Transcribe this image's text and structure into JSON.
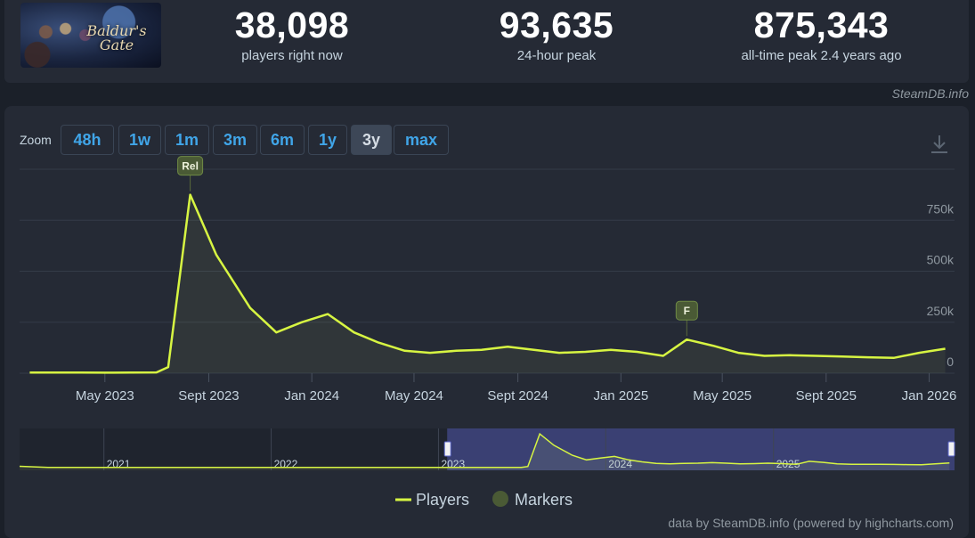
{
  "header": {
    "game_title": "Baldur's Gate",
    "stats": [
      {
        "value": "38,098",
        "label": "players right now"
      },
      {
        "value": "93,635",
        "label": "24-hour peak"
      },
      {
        "value": "875,343",
        "label": "all-time peak 2.4 years ago"
      }
    ],
    "attribution": "SteamDB.info"
  },
  "zoom": {
    "label": "Zoom",
    "options": [
      "48h",
      "1w",
      "1m",
      "3m",
      "6m",
      "1y",
      "3y",
      "max"
    ],
    "selected": "3y"
  },
  "chart_data": {
    "type": "line",
    "series": [
      {
        "name": "Players",
        "color": "#d7f542",
        "points": [
          [
            "2023-02-01",
            3000
          ],
          [
            "2023-03-01",
            3000
          ],
          [
            "2023-04-01",
            3000
          ],
          [
            "2023-05-01",
            2500
          ],
          [
            "2023-06-01",
            3000
          ],
          [
            "2023-07-01",
            4000
          ],
          [
            "2023-07-15",
            30000
          ],
          [
            "2023-08-10",
            875000
          ],
          [
            "2023-09-10",
            580000
          ],
          [
            "2023-10-20",
            320000
          ],
          [
            "2023-11-20",
            200000
          ],
          [
            "2023-12-20",
            250000
          ],
          [
            "2024-01-20",
            290000
          ],
          [
            "2024-02-20",
            200000
          ],
          [
            "2024-03-20",
            150000
          ],
          [
            "2024-04-20",
            110000
          ],
          [
            "2024-05-20",
            100000
          ],
          [
            "2024-06-20",
            110000
          ],
          [
            "2024-07-20",
            115000
          ],
          [
            "2024-08-20",
            130000
          ],
          [
            "2024-09-20",
            115000
          ],
          [
            "2024-10-20",
            100000
          ],
          [
            "2024-11-20",
            105000
          ],
          [
            "2024-12-20",
            115000
          ],
          [
            "2025-01-20",
            105000
          ],
          [
            "2025-02-20",
            85000
          ],
          [
            "2025-03-20",
            165000
          ],
          [
            "2025-04-20",
            135000
          ],
          [
            "2025-05-20",
            100000
          ],
          [
            "2025-06-20",
            85000
          ],
          [
            "2025-07-20",
            88000
          ],
          [
            "2025-08-20",
            85000
          ],
          [
            "2025-09-20",
            82000
          ],
          [
            "2025-10-20",
            78000
          ],
          [
            "2025-11-20",
            75000
          ],
          [
            "2025-12-20",
            100000
          ],
          [
            "2026-01-20",
            120000
          ]
        ]
      }
    ],
    "markers": [
      {
        "label": "Rel",
        "date": "2023-08-10"
      },
      {
        "label": "F",
        "date": "2025-03-20"
      }
    ],
    "x_ticks": [
      "May 2023",
      "Sept 2023",
      "Jan 2024",
      "May 2024",
      "Sept 2024",
      "Jan 2025",
      "May 2025",
      "Sept 2025",
      "Jan 2026"
    ],
    "x_tick_dates": [
      "2023-05-01",
      "2023-09-01",
      "2024-01-01",
      "2024-05-01",
      "2024-09-01",
      "2025-01-01",
      "2025-05-01",
      "2025-09-01",
      "2026-01-01"
    ],
    "y_ticks": [
      "750k",
      "500k",
      "250k",
      "0"
    ],
    "y_tick_values": [
      750000,
      500000,
      250000,
      0
    ],
    "ylim": [
      0,
      1000000
    ],
    "xlim": [
      "2023-01-20",
      "2026-01-31"
    ],
    "grid": true,
    "navigator": {
      "year_labels": [
        "2021",
        "2022",
        "2023",
        "2024",
        "2025"
      ],
      "year_dates": [
        "2021-01-01",
        "2022-01-01",
        "2023-01-01",
        "2024-01-01",
        "2025-01-01"
      ],
      "range": [
        "2020-07-01",
        "2026-01-31"
      ],
      "selected_range": [
        "2023-01-20",
        "2026-01-31"
      ]
    },
    "legend": [
      "Players",
      "Markers"
    ],
    "legend_position": "bottom",
    "credit": "data by SteamDB.info (powered by highcharts.com)"
  }
}
